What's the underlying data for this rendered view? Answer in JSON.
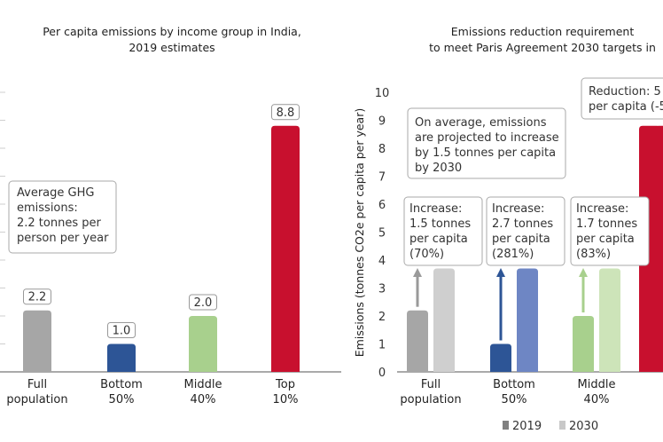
{
  "chart_data": [
    {
      "type": "bar",
      "title_lines": [
        "Per capita emissions by income group in India,",
        "2019 estimates"
      ],
      "categories": [
        [
          "Full",
          "population"
        ],
        [
          "Bottom",
          "50%"
        ],
        [
          "Middle",
          "40%"
        ],
        [
          "Top",
          "10%"
        ]
      ],
      "values": [
        2.2,
        1.0,
        2.0,
        8.8
      ],
      "value_labels": [
        "2.2",
        "1.0",
        "2.0",
        "8.8"
      ],
      "colors": [
        "#a6a6a6",
        "#2d5596",
        "#a8d08d",
        "#c8102e"
      ],
      "ylim": [
        0,
        10
      ],
      "grid": false,
      "annotation": [
        "Average GHG",
        "emissions:",
        "2.2 tonnes per",
        "person per year"
      ]
    },
    {
      "type": "bar",
      "title_lines": [
        "Emissions reduction requirement",
        "to meet Paris Agreement 2030 targets in"
      ],
      "ylabel": "Emissions (tonnes CO2e per capita per year)",
      "yticks": [
        "0",
        "1",
        "2",
        "3",
        "4",
        "5",
        "6",
        "7",
        "8",
        "9",
        "10"
      ],
      "ylim": [
        0,
        10
      ],
      "categories": [
        [
          "Full",
          "population"
        ],
        [
          "Bottom",
          "50%"
        ],
        [
          "Middle",
          "40%"
        ],
        [
          "",
          ""
        ]
      ],
      "series": [
        {
          "name": "2019",
          "values": [
            2.2,
            1.0,
            2.0,
            8.8
          ],
          "colors": [
            "#a6a6a6",
            "#2d5596",
            "#a8d08d",
            "#c8102e"
          ]
        },
        {
          "name": "2030",
          "values": [
            3.7,
            3.7,
            3.7,
            null
          ],
          "colors": [
            "#cfcfcf",
            "#6e86c4",
            "#cde4b9",
            "#e88a8a"
          ]
        }
      ],
      "arrow_colors": [
        "#9a9a9a",
        "#2d5596",
        "#a8d08d"
      ],
      "annotations": [
        [
          "Increase:",
          "1.5 tonnes",
          "per capita",
          "(70%)"
        ],
        [
          "Increase:",
          "2.7 tonnes",
          "per capita",
          "(281%)"
        ],
        [
          "Increase:",
          "1.7 tonnes",
          "per capita",
          "(83%)"
        ]
      ],
      "average_note": [
        "On average, emissions",
        "are projected to increase",
        "by 1.5 tonnes per capita",
        "by 2030"
      ],
      "reduction_note": [
        "Reduction: 5",
        "per capita (-5"
      ],
      "grid": false,
      "legend_placement": "bottom",
      "legend": [
        {
          "label": "2019",
          "color": "#808080"
        },
        {
          "label": "2030",
          "color": "#c8c8c8"
        }
      ]
    }
  ]
}
